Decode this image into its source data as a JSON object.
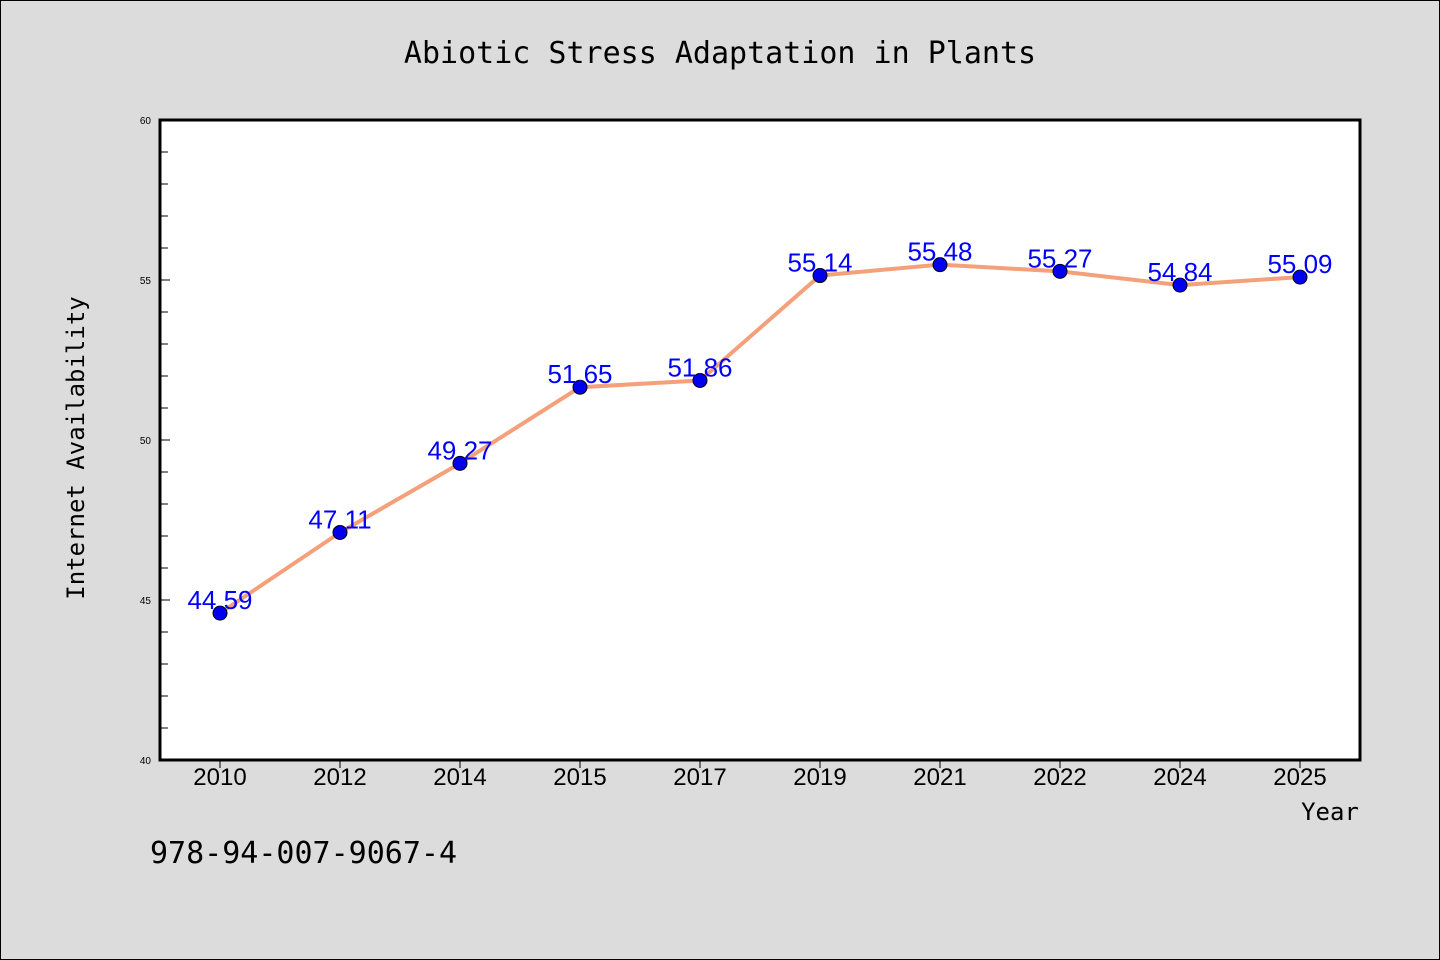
{
  "chart_data": {
    "type": "line",
    "title": "Abiotic Stress Adaptation in Plants",
    "xlabel": "Year",
    "ylabel": "Internet Availability",
    "categories": [
      "2010",
      "2012",
      "2014",
      "2015",
      "2017",
      "2019",
      "2021",
      "2022",
      "2024",
      "2025"
    ],
    "series": [
      {
        "values": [
          44.59,
          47.11,
          49.27,
          51.65,
          51.86,
          55.14,
          55.48,
          55.27,
          54.84,
          55.09
        ],
        "data_labels": [
          "44.59",
          "47.11",
          "49.27",
          "51.65",
          "51.86",
          "55.14",
          "55.48",
          "55.27",
          "54.84",
          "55.09"
        ],
        "line_color": "#f4a07a",
        "marker_color": "#0000ee",
        "label_color": "#0000ff"
      }
    ],
    "ylim": [
      40,
      60
    ],
    "yticks": [
      "40",
      "45",
      "50",
      "55",
      "60"
    ],
    "grid": false,
    "legend": "none"
  },
  "footer": {
    "isbn": "978-94-007-9067-4"
  },
  "colors": {
    "background": "#dcdcdc",
    "plot_background": "#ffffff"
  }
}
